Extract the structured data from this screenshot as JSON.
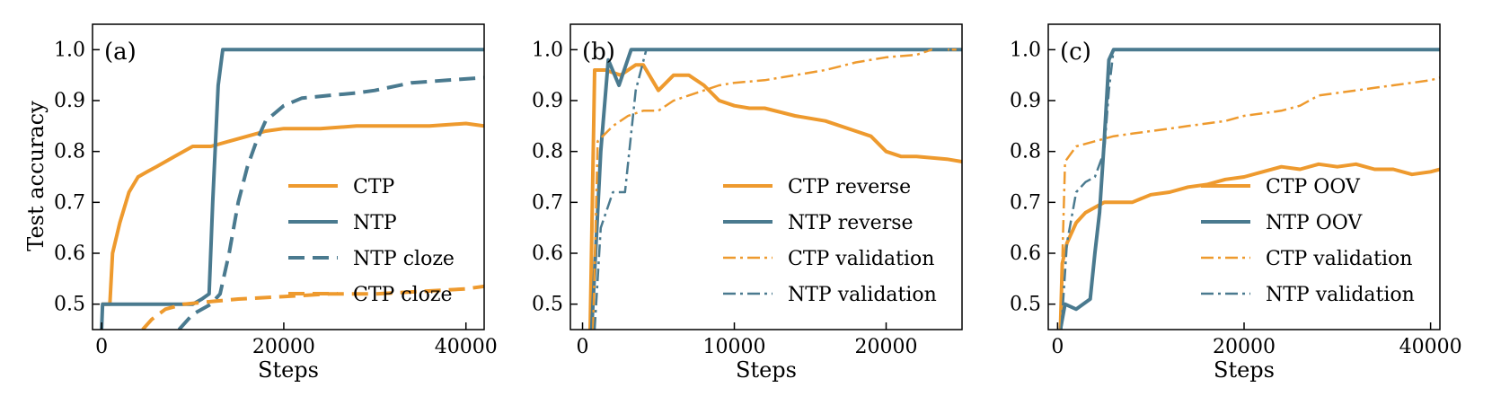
{
  "colors": {
    "orange": "#EE9A2E",
    "teal": "#4A7A8F"
  },
  "chart_data": [
    {
      "type": "line",
      "panel_label": "(a)",
      "xlabel": "Steps",
      "ylabel": "Test accuracy",
      "xlim": [
        -1000,
        42000
      ],
      "ylim": [
        0.45,
        1.05
      ],
      "xticks": [
        0,
        20000,
        40000
      ],
      "xtick_labels": [
        "0",
        "20000",
        "40000"
      ],
      "yticks": [
        0.5,
        0.6,
        0.7,
        0.8,
        0.9,
        1.0
      ],
      "ytick_labels": [
        "0.5",
        "0.6",
        "0.7",
        "0.8",
        "0.9",
        "1.0"
      ],
      "legend_position": "lower-right",
      "series": [
        {
          "name": "CTP",
          "color": "orange",
          "dash": "solid",
          "width": 4,
          "points": [
            [
              0,
              0.5
            ],
            [
              900,
              0.5
            ],
            [
              1200,
              0.6
            ],
            [
              2000,
              0.66
            ],
            [
              3000,
              0.72
            ],
            [
              4000,
              0.75
            ],
            [
              5000,
              0.76
            ],
            [
              6000,
              0.77
            ],
            [
              8000,
              0.79
            ],
            [
              10000,
              0.81
            ],
            [
              12000,
              0.81
            ],
            [
              14000,
              0.82
            ],
            [
              16000,
              0.83
            ],
            [
              18000,
              0.84
            ],
            [
              20000,
              0.845
            ],
            [
              24000,
              0.845
            ],
            [
              28000,
              0.85
            ],
            [
              32000,
              0.85
            ],
            [
              36000,
              0.85
            ],
            [
              40000,
              0.855
            ],
            [
              42000,
              0.85
            ]
          ]
        },
        {
          "name": "NTP",
          "color": "teal",
          "dash": "solid",
          "width": 4,
          "points": [
            [
              0,
              0.45
            ],
            [
              100,
              0.5
            ],
            [
              2000,
              0.5
            ],
            [
              4000,
              0.5
            ],
            [
              6000,
              0.5
            ],
            [
              8000,
              0.5
            ],
            [
              10000,
              0.5
            ],
            [
              11000,
              0.51
            ],
            [
              11800,
              0.52
            ],
            [
              12200,
              0.7
            ],
            [
              12800,
              0.93
            ],
            [
              13300,
              1.0
            ],
            [
              20000,
              1.0
            ],
            [
              30000,
              1.0
            ],
            [
              42000,
              1.0
            ]
          ]
        },
        {
          "name": "NTP cloze",
          "color": "teal",
          "dash": "dash",
          "width": 4,
          "points": [
            [
              8500,
              0.45
            ],
            [
              10000,
              0.48
            ],
            [
              12000,
              0.5
            ],
            [
              13000,
              0.52
            ],
            [
              14000,
              0.6
            ],
            [
              15000,
              0.7
            ],
            [
              16000,
              0.77
            ],
            [
              17000,
              0.82
            ],
            [
              18000,
              0.86
            ],
            [
              20000,
              0.89
            ],
            [
              22000,
              0.905
            ],
            [
              25000,
              0.91
            ],
            [
              28000,
              0.915
            ],
            [
              30000,
              0.92
            ],
            [
              34000,
              0.935
            ],
            [
              38000,
              0.94
            ],
            [
              42000,
              0.945
            ]
          ]
        },
        {
          "name": "CTP cloze",
          "color": "orange",
          "dash": "dash",
          "width": 4,
          "points": [
            [
              4500,
              0.45
            ],
            [
              5500,
              0.47
            ],
            [
              7000,
              0.49
            ],
            [
              9000,
              0.5
            ],
            [
              12000,
              0.505
            ],
            [
              15000,
              0.51
            ],
            [
              20000,
              0.515
            ],
            [
              25000,
              0.52
            ],
            [
              30000,
              0.52
            ],
            [
              35000,
              0.525
            ],
            [
              40000,
              0.53
            ],
            [
              42000,
              0.535
            ]
          ]
        }
      ]
    },
    {
      "type": "line",
      "panel_label": "(b)",
      "xlabel": "Steps",
      "ylabel": "",
      "xlim": [
        -800,
        25000
      ],
      "ylim": [
        0.45,
        1.05
      ],
      "xticks": [
        0,
        10000,
        20000
      ],
      "xtick_labels": [
        "0",
        "10000",
        "20000"
      ],
      "yticks": [
        0.5,
        0.6,
        0.7,
        0.8,
        0.9,
        1.0
      ],
      "ytick_labels": [
        "0.5",
        "0.6",
        "0.7",
        "0.8",
        "0.9",
        "1.0"
      ],
      "legend_position": "lower-right",
      "series": [
        {
          "name": "CTP reverse",
          "color": "orange",
          "dash": "solid",
          "width": 4,
          "points": [
            [
              500,
              0.45
            ],
            [
              800,
              0.96
            ],
            [
              1500,
              0.96
            ],
            [
              2500,
              0.95
            ],
            [
              3500,
              0.97
            ],
            [
              4000,
              0.97
            ],
            [
              5000,
              0.92
            ],
            [
              6000,
              0.95
            ],
            [
              7000,
              0.95
            ],
            [
              8000,
              0.93
            ],
            [
              9000,
              0.9
            ],
            [
              10000,
              0.89
            ],
            [
              11000,
              0.885
            ],
            [
              12000,
              0.885
            ],
            [
              14000,
              0.87
            ],
            [
              16000,
              0.86
            ],
            [
              18000,
              0.84
            ],
            [
              19000,
              0.83
            ],
            [
              20000,
              0.8
            ],
            [
              21000,
              0.79
            ],
            [
              22000,
              0.79
            ],
            [
              24000,
              0.785
            ],
            [
              25000,
              0.78
            ]
          ]
        },
        {
          "name": "NTP reverse",
          "color": "teal",
          "dash": "solid",
          "width": 4,
          "points": [
            [
              600,
              0.45
            ],
            [
              1200,
              0.8
            ],
            [
              1700,
              0.98
            ],
            [
              2400,
              0.93
            ],
            [
              3200,
              1.0
            ],
            [
              4000,
              1.0
            ],
            [
              10000,
              1.0
            ],
            [
              20000,
              1.0
            ],
            [
              25000,
              1.0
            ]
          ]
        },
        {
          "name": "CTP validation",
          "color": "orange",
          "dash": "dashdot",
          "width": 2.5,
          "points": [
            [
              700,
              0.45
            ],
            [
              1000,
              0.82
            ],
            [
              2000,
              0.85
            ],
            [
              3000,
              0.87
            ],
            [
              4000,
              0.88
            ],
            [
              5000,
              0.88
            ],
            [
              6000,
              0.9
            ],
            [
              7000,
              0.91
            ],
            [
              8000,
              0.92
            ],
            [
              9000,
              0.93
            ],
            [
              10000,
              0.935
            ],
            [
              12000,
              0.94
            ],
            [
              14000,
              0.95
            ],
            [
              16000,
              0.96
            ],
            [
              18000,
              0.975
            ],
            [
              20000,
              0.985
            ],
            [
              22000,
              0.99
            ],
            [
              23000,
              1.0
            ],
            [
              25000,
              1.0
            ]
          ]
        },
        {
          "name": "NTP validation",
          "color": "teal",
          "dash": "dashdot",
          "width": 2.5,
          "points": [
            [
              800,
              0.45
            ],
            [
              1200,
              0.65
            ],
            [
              2000,
              0.72
            ],
            [
              2800,
              0.72
            ],
            [
              3500,
              0.92
            ],
            [
              4200,
              1.0
            ],
            [
              10000,
              1.0
            ],
            [
              25000,
              1.0
            ]
          ]
        }
      ]
    },
    {
      "type": "line",
      "panel_label": "(c)",
      "xlabel": "Steps",
      "ylabel": "",
      "xlim": [
        -1000,
        41000
      ],
      "ylim": [
        0.45,
        1.05
      ],
      "xticks": [
        0,
        20000,
        40000
      ],
      "xtick_labels": [
        "0",
        "20000",
        "40000"
      ],
      "yticks": [
        0.5,
        0.6,
        0.7,
        0.8,
        0.9,
        1.0
      ],
      "ytick_labels": [
        "0.5",
        "0.6",
        "0.7",
        "0.8",
        "0.9",
        "1.0"
      ],
      "legend_position": "lower-right",
      "series": [
        {
          "name": "CTP OOV",
          "color": "orange",
          "dash": "solid",
          "width": 4,
          "points": [
            [
              300,
              0.45
            ],
            [
              500,
              0.58
            ],
            [
              1000,
              0.62
            ],
            [
              2000,
              0.66
            ],
            [
              3000,
              0.68
            ],
            [
              4000,
              0.69
            ],
            [
              5000,
              0.7
            ],
            [
              6000,
              0.7
            ],
            [
              8000,
              0.7
            ],
            [
              10000,
              0.715
            ],
            [
              12000,
              0.72
            ],
            [
              14000,
              0.73
            ],
            [
              16000,
              0.735
            ],
            [
              18000,
              0.745
            ],
            [
              20000,
              0.75
            ],
            [
              22000,
              0.76
            ],
            [
              24000,
              0.77
            ],
            [
              26000,
              0.765
            ],
            [
              28000,
              0.775
            ],
            [
              30000,
              0.77
            ],
            [
              32000,
              0.775
            ],
            [
              34000,
              0.765
            ],
            [
              36000,
              0.765
            ],
            [
              38000,
              0.755
            ],
            [
              40000,
              0.76
            ],
            [
              41000,
              0.765
            ]
          ]
        },
        {
          "name": "NTP OOV",
          "color": "teal",
          "dash": "solid",
          "width": 4,
          "points": [
            [
              300,
              0.45
            ],
            [
              800,
              0.5
            ],
            [
              2000,
              0.49
            ],
            [
              3500,
              0.51
            ],
            [
              4000,
              0.6
            ],
            [
              4500,
              0.68
            ],
            [
              5000,
              0.82
            ],
            [
              5500,
              0.98
            ],
            [
              6000,
              1.0
            ],
            [
              10000,
              1.0
            ],
            [
              20000,
              1.0
            ],
            [
              41000,
              1.0
            ]
          ]
        },
        {
          "name": "CTP validation",
          "color": "orange",
          "dash": "dashdot",
          "width": 2.5,
          "points": [
            [
              300,
              0.45
            ],
            [
              800,
              0.78
            ],
            [
              2000,
              0.81
            ],
            [
              4000,
              0.82
            ],
            [
              6000,
              0.83
            ],
            [
              8000,
              0.835
            ],
            [
              10000,
              0.84
            ],
            [
              12000,
              0.845
            ],
            [
              14000,
              0.85
            ],
            [
              16000,
              0.855
            ],
            [
              18000,
              0.86
            ],
            [
              20000,
              0.87
            ],
            [
              22000,
              0.875
            ],
            [
              24000,
              0.88
            ],
            [
              26000,
              0.89
            ],
            [
              28000,
              0.91
            ],
            [
              30000,
              0.915
            ],
            [
              32000,
              0.92
            ],
            [
              34000,
              0.925
            ],
            [
              36000,
              0.93
            ],
            [
              38000,
              0.935
            ],
            [
              40000,
              0.94
            ],
            [
              41000,
              0.945
            ]
          ]
        },
        {
          "name": "NTP validation",
          "color": "teal",
          "dash": "dashdot",
          "width": 2.5,
          "points": [
            [
              400,
              0.45
            ],
            [
              1000,
              0.62
            ],
            [
              2000,
              0.72
            ],
            [
              3000,
              0.74
            ],
            [
              4000,
              0.75
            ],
            [
              5000,
              0.8
            ],
            [
              5500,
              0.92
            ],
            [
              6000,
              1.0
            ],
            [
              10000,
              1.0
            ],
            [
              20000,
              1.0
            ],
            [
              41000,
              1.0
            ]
          ]
        }
      ]
    }
  ]
}
